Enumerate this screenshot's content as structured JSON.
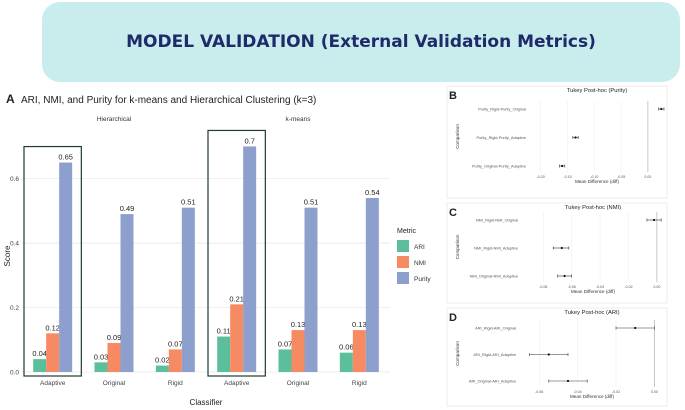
{
  "banner": {
    "title": "MODEL VALIDATION (External Validation Metrics)"
  },
  "colors": {
    "ARI": "#5cbf9b",
    "NMI": "#f58a63",
    "Purity": "#8c9fcd",
    "banner_bg": "#c9ecec",
    "banner_text": "#1d2b6b"
  },
  "chart_data": [
    {
      "panel_letter": "A",
      "type": "bar",
      "title": "ARI, NMI, and Purity for k-means and Hierarchical Clustering (k=3)",
      "xlabel": "Classifier",
      "ylabel": "Score",
      "ylim": [
        0,
        0.72
      ],
      "yticks": [
        "0.0",
        "0.2",
        "0.4",
        "0.6"
      ],
      "facets": [
        {
          "label": "Hierarchical",
          "categories": [
            "Adaptive",
            "Original",
            "Rigid"
          ],
          "series": [
            {
              "name": "ARI",
              "values": [
                0.04,
                0.03,
                0.02
              ],
              "labels": [
                "0.04",
                "0.03",
                "0.02"
              ]
            },
            {
              "name": "NMI",
              "values": [
                0.12,
                0.09,
                0.07
              ],
              "labels": [
                "0.12",
                "0.09",
                "0.07"
              ]
            },
            {
              "name": "Purity",
              "values": [
                0.65,
                0.49,
                0.51
              ],
              "labels": [
                "0.65",
                "0.49",
                "0.51"
              ]
            }
          ]
        },
        {
          "label": "k-means",
          "categories": [
            "Adaptive",
            "Original",
            "Rigid"
          ],
          "series": [
            {
              "name": "ARI",
              "values": [
                0.11,
                0.07,
                0.06
              ],
              "labels": [
                "0.11",
                "0.07",
                "0.06"
              ]
            },
            {
              "name": "NMI",
              "values": [
                0.21,
                0.13,
                0.13
              ],
              "labels": [
                "0.21",
                "0.13",
                "0.13"
              ]
            },
            {
              "name": "Purity",
              "values": [
                0.7,
                0.51,
                0.54
              ],
              "labels": [
                "0.7",
                "0.51",
                "0.54"
              ]
            }
          ]
        }
      ],
      "highlighted_category": "Adaptive",
      "legend": {
        "title": "Metric",
        "entries": [
          "ARI",
          "NMI",
          "Purity"
        ],
        "placement": "right"
      }
    },
    {
      "panel_letter": "B",
      "type": "scatter",
      "title": "Tukey Post-hoc (Purity)",
      "xlabel": "Mean Difference (diff)",
      "ylabel": "Comparison",
      "xlim": [
        -0.22,
        0.03
      ],
      "xticks": [
        -0.2,
        -0.15,
        -0.1,
        -0.05,
        0.0
      ],
      "xtick_labels": [
        "-0.20",
        "-0.15",
        "-0.10",
        "-0.05",
        "0.00"
      ],
      "comparisons": [
        {
          "label": "Purity_Rigid-Purity_Original",
          "diff": 0.025,
          "lwr": 0.02,
          "upr": 0.03
        },
        {
          "label": "Purity_Rigid-Purity_Adaptive",
          "diff": -0.135,
          "lwr": -0.14,
          "upr": -0.13
        },
        {
          "label": "Purity_Original-Purity_Adaptive",
          "diff": -0.16,
          "lwr": -0.165,
          "upr": -0.155
        }
      ]
    },
    {
      "panel_letter": "C",
      "type": "scatter",
      "title": "Tukey Post-hoc (NMI)",
      "xlabel": "Mean Difference (diff)",
      "ylabel": "Comparison",
      "xlim": [
        -0.095,
        0.005
      ],
      "xticks": [
        -0.08,
        -0.06,
        -0.04,
        -0.02,
        0.0
      ],
      "xtick_labels": [
        "-0.08",
        "-0.06",
        "-0.04",
        "-0.02",
        "0.00"
      ],
      "comparisons": [
        {
          "label": "NMI_Rigid-NMI_Original",
          "diff": -0.002,
          "lwr": -0.007,
          "upr": 0.003
        },
        {
          "label": "NMI_Rigid-NMI_Adaptive",
          "diff": -0.067,
          "lwr": -0.073,
          "upr": -0.062
        },
        {
          "label": "NMI_Original-NMI_Adaptive",
          "diff": -0.065,
          "lwr": -0.07,
          "upr": -0.06
        }
      ]
    },
    {
      "panel_letter": "D",
      "type": "scatter",
      "title": "Tukey Post-hoc (ARI)",
      "xlabel": "Mean Difference (diff)",
      "ylabel": "Comparison",
      "xlim": [
        -0.07,
        0.005
      ],
      "xticks": [
        -0.06,
        -0.04,
        -0.02,
        0.0
      ],
      "xtick_labels": [
        "-0.06",
        "-0.04",
        "-0.02",
        "0.00"
      ],
      "comparisons": [
        {
          "label": "ARI_Rigid-ARI_Original",
          "diff": -0.01,
          "lwr": -0.02,
          "upr": 0.0
        },
        {
          "label": "ARI_Rigid-ARI_Adaptive",
          "diff": -0.055,
          "lwr": -0.065,
          "upr": -0.045
        },
        {
          "label": "ARI_Original-ARI_Adaptive",
          "diff": -0.045,
          "lwr": -0.055,
          "upr": -0.035
        }
      ]
    }
  ]
}
